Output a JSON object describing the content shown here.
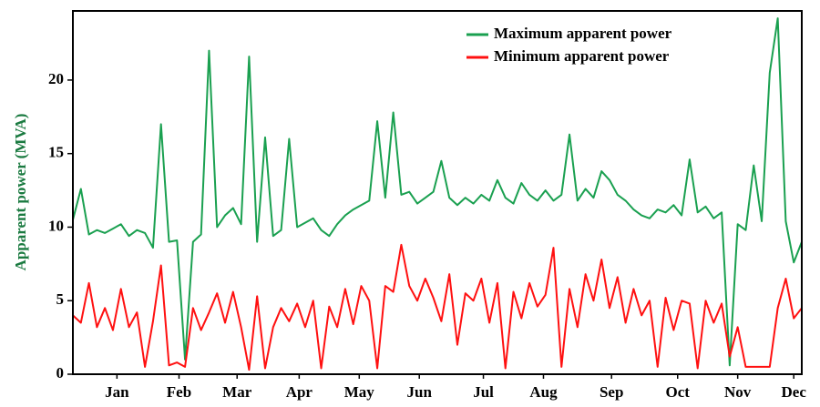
{
  "chart_data": {
    "type": "line",
    "y_label": "Apparent power (MVA)",
    "x": [
      1,
      5,
      9,
      13,
      17,
      21,
      25,
      29,
      33,
      37,
      41,
      45,
      49,
      53,
      57,
      61,
      65,
      69,
      73,
      77,
      81,
      85,
      89,
      93,
      97,
      101,
      105,
      109,
      113,
      117,
      121,
      125,
      129,
      133,
      137,
      141,
      145,
      149,
      153,
      157,
      161,
      165,
      169,
      173,
      177,
      181,
      185,
      189,
      193,
      197,
      201,
      205,
      209,
      213,
      217,
      221,
      225,
      229,
      233,
      237,
      241,
      245,
      249,
      253,
      257,
      261,
      265,
      269,
      273,
      277,
      281,
      285,
      289,
      293,
      297,
      301,
      305,
      309,
      313,
      317,
      321,
      325,
      329,
      333,
      337,
      341,
      345,
      349,
      353,
      357,
      361,
      365
    ],
    "series": [
      {
        "name": "Maximum apparent power",
        "color": "#1aa050",
        "values": [
          10.5,
          12.6,
          9.5,
          9.8,
          9.6,
          9.9,
          10.2,
          9.4,
          9.8,
          9.6,
          8.6,
          17.0,
          9.0,
          9.1,
          1.0,
          9.0,
          9.5,
          22.0,
          10.0,
          10.8,
          11.3,
          10.2,
          21.6,
          9.0,
          16.1,
          9.4,
          9.8,
          16.0,
          10.0,
          10.3,
          10.6,
          9.8,
          9.4,
          10.2,
          10.8,
          11.2,
          11.5,
          11.8,
          17.2,
          12.0,
          17.8,
          12.2,
          12.4,
          11.6,
          12.0,
          12.4,
          14.5,
          12.0,
          11.5,
          12.0,
          11.6,
          12.2,
          11.8,
          13.2,
          12.0,
          11.6,
          13.0,
          12.2,
          11.8,
          12.5,
          11.8,
          12.2,
          16.3,
          11.8,
          12.6,
          12.0,
          13.8,
          13.2,
          12.2,
          11.8,
          11.2,
          10.8,
          10.6,
          11.2,
          11.0,
          11.5,
          10.8,
          14.6,
          11.0,
          11.4,
          10.6,
          11.0,
          0.6,
          10.2,
          9.8,
          14.2,
          10.4,
          20.5,
          24.2,
          10.4,
          7.6,
          9.0
        ]
      },
      {
        "name": "Minimum apparent power",
        "color": "#ff1010",
        "values": [
          4.0,
          3.5,
          6.2,
          3.2,
          4.5,
          3.0,
          5.8,
          3.2,
          4.2,
          0.5,
          3.6,
          7.4,
          0.6,
          0.8,
          0.5,
          4.5,
          3.0,
          4.2,
          5.5,
          3.5,
          5.6,
          3.2,
          0.3,
          5.3,
          0.4,
          3.2,
          4.5,
          3.6,
          4.8,
          3.2,
          5.0,
          0.4,
          4.6,
          3.2,
          5.8,
          3.4,
          6.0,
          5.0,
          0.4,
          6.0,
          5.6,
          8.8,
          6.0,
          5.0,
          6.5,
          5.2,
          3.6,
          6.8,
          2.0,
          5.5,
          5.0,
          6.5,
          3.5,
          6.2,
          0.4,
          5.6,
          3.8,
          6.2,
          4.6,
          5.4,
          8.6,
          0.5,
          5.8,
          3.2,
          6.8,
          5.0,
          7.8,
          4.5,
          6.6,
          3.5,
          5.8,
          4.0,
          5.0,
          0.5,
          5.2,
          3.0,
          5.0,
          4.8,
          0.4,
          5.0,
          3.5,
          4.8,
          1.2,
          3.2,
          0.5,
          0.5,
          0.5,
          0.5,
          4.5,
          6.5,
          3.8,
          4.5
        ]
      }
    ],
    "xlim": [
      1,
      365
    ],
    "xticks": [
      {
        "value": 23,
        "label": "Jan"
      },
      {
        "value": 54,
        "label": "Feb"
      },
      {
        "value": 83,
        "label": "Mar"
      },
      {
        "value": 114,
        "label": "Apr"
      },
      {
        "value": 144,
        "label": "May"
      },
      {
        "value": 174,
        "label": "Jun"
      },
      {
        "value": 206,
        "label": "Jul"
      },
      {
        "value": 236,
        "label": "Aug"
      },
      {
        "value": 270,
        "label": "Sep"
      },
      {
        "value": 303,
        "label": "Oct"
      },
      {
        "value": 333,
        "label": "Nov"
      },
      {
        "value": 361,
        "label": "Dec"
      }
    ],
    "ylim": [
      0,
      24.7
    ],
    "yticks": [
      0,
      5,
      10,
      15,
      20
    ],
    "legend": "upper-right"
  }
}
